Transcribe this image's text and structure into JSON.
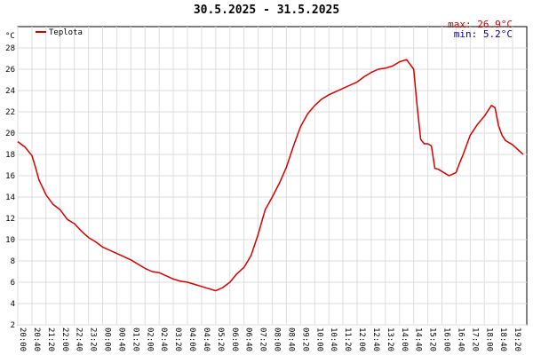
{
  "chart_data": {
    "type": "line",
    "title": "30.5.2025 - 31.5.2025",
    "ylabel": "°C",
    "ylim": [
      2,
      30
    ],
    "yticks": [
      2,
      4,
      6,
      8,
      10,
      12,
      14,
      16,
      18,
      20,
      22,
      24,
      26,
      28
    ],
    "grid": true,
    "legend_position": "top-left",
    "stats": {
      "max": "max: 26.9°C",
      "min": "min:  5.2°C"
    },
    "x_tick_labels": [
      "20:00",
      "20:40",
      "21:20",
      "22:00",
      "22:40",
      "23:20",
      "00:00",
      "00:40",
      "01:20",
      "02:00",
      "02:40",
      "03:20",
      "04:00",
      "04:40",
      "05:20",
      "06:00",
      "06:40",
      "07:20",
      "08:00",
      "08:40",
      "09:20",
      "10:00",
      "10:40",
      "11:20",
      "12:00",
      "12:40",
      "13:20",
      "14:00",
      "14:40",
      "15:20",
      "16:00",
      "16:40",
      "17:20",
      "18:00",
      "18:40",
      "19:20"
    ],
    "x_tick_display": [
      "20:00",
      "20:40",
      "21:20",
      "22:00",
      "22:40",
      "23:20",
      "00:00",
      "00:40",
      "01:20",
      "02:00",
      "02:40",
      "03:20",
      "04:00",
      "04:40",
      "05:20",
      "06:00",
      "06:40",
      "07:20",
      "08:00",
      "08:40",
      "09:20",
      "10:00",
      "10:40",
      "11:20",
      "12:00",
      "12:40",
      "13:20",
      "14:00",
      "14:40",
      "15:20",
      "16:00",
      "16:40",
      "17:20",
      "18:00",
      "18:40",
      "19:20"
    ],
    "series": [
      {
        "name": "Teplota",
        "color": "#d40000",
        "x": [
          "20:00",
          "20:20",
          "20:40",
          "20:50",
          "21:00",
          "21:10",
          "21:20",
          "21:40",
          "22:00",
          "22:20",
          "22:40",
          "23:00",
          "23:20",
          "23:40",
          "00:00",
          "00:20",
          "00:40",
          "01:00",
          "01:20",
          "01:40",
          "02:00",
          "02:20",
          "02:40",
          "03:00",
          "03:20",
          "03:40",
          "04:00",
          "04:20",
          "04:40",
          "05:00",
          "05:20",
          "05:40",
          "06:00",
          "06:20",
          "06:40",
          "07:00",
          "07:20",
          "07:40",
          "08:00",
          "08:20",
          "08:40",
          "09:00",
          "09:20",
          "09:40",
          "10:00",
          "10:20",
          "10:40",
          "11:00",
          "11:20",
          "11:40",
          "12:00",
          "12:20",
          "12:40",
          "13:00",
          "13:20",
          "13:40",
          "14:00",
          "14:20",
          "14:40",
          "14:50",
          "15:00",
          "15:10",
          "15:20",
          "15:30",
          "15:40",
          "15:50",
          "16:00",
          "16:20",
          "16:40",
          "16:50",
          "17:00",
          "17:20",
          "17:40",
          "18:00",
          "18:20",
          "18:30",
          "18:40",
          "18:50",
          "19:00",
          "19:20",
          "19:40",
          "19:50"
        ],
        "values": [
          19.2,
          18.7,
          17.9,
          16.8,
          15.6,
          14.9,
          14.2,
          13.3,
          12.8,
          11.9,
          11.5,
          10.8,
          10.2,
          9.8,
          9.3,
          9.0,
          8.7,
          8.4,
          8.1,
          7.7,
          7.3,
          7.0,
          6.9,
          6.6,
          6.3,
          6.1,
          6.0,
          5.8,
          5.6,
          5.4,
          5.2,
          5.5,
          6.0,
          6.8,
          7.4,
          8.5,
          10.5,
          12.8,
          14.0,
          15.3,
          16.8,
          18.8,
          20.6,
          21.8,
          22.6,
          23.2,
          23.6,
          23.9,
          24.2,
          24.5,
          24.8,
          25.3,
          25.7,
          26.0,
          26.1,
          26.3,
          26.7,
          26.9,
          26.0,
          22.5,
          19.4,
          19.0,
          19.0,
          18.8,
          16.7,
          16.6,
          16.4,
          16.0,
          16.3,
          17.2,
          18.0,
          19.8,
          20.8,
          21.6,
          22.6,
          22.4,
          20.7,
          19.8,
          19.3,
          18.9,
          18.3,
          18.0
        ]
      }
    ]
  }
}
